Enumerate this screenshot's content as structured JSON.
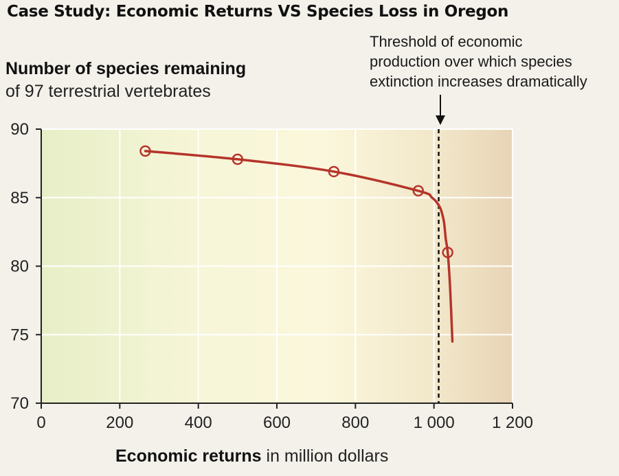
{
  "page_title": "Case Study: Economic Returns VS Species Loss in Oregon",
  "chart_data": {
    "type": "line",
    "ylabel_bold": "Number of species remaining",
    "ylabel_sub": "of 97 terrestrial vertebrates",
    "xlabel_bold": "Economic returns",
    "xlabel_rest": " in million dollars",
    "xlim": [
      0,
      1200
    ],
    "ylim": [
      70,
      90
    ],
    "x_ticks": [
      0,
      200,
      400,
      600,
      800,
      1000,
      1200
    ],
    "x_tick_labels": [
      "0",
      "200",
      "400",
      "600",
      "800",
      "1 000",
      "1 200"
    ],
    "y_ticks": [
      70,
      75,
      80,
      85,
      90
    ],
    "y_tick_labels": [
      "70",
      "75",
      "80",
      "85",
      "90"
    ],
    "grid": true,
    "series": [
      {
        "name": "Species remaining",
        "color": "#b5342b",
        "points": [
          {
            "x": 265,
            "y": 88.4
          },
          {
            "x": 500,
            "y": 87.8
          },
          {
            "x": 745,
            "y": 86.9
          },
          {
            "x": 960,
            "y": 85.5
          },
          {
            "x": 1035,
            "y": 81.0
          }
        ],
        "curve": [
          {
            "x": 265,
            "y": 88.4
          },
          {
            "x": 500,
            "y": 87.8
          },
          {
            "x": 745,
            "y": 86.9
          },
          {
            "x": 960,
            "y": 85.5
          },
          {
            "x": 995,
            "y": 85.0
          },
          {
            "x": 1015,
            "y": 84.3
          },
          {
            "x": 1025,
            "y": 83.3
          },
          {
            "x": 1030,
            "y": 82.0
          },
          {
            "x": 1035,
            "y": 81.0
          },
          {
            "x": 1041,
            "y": 78.5
          },
          {
            "x": 1047,
            "y": 74.5
          }
        ]
      }
    ],
    "threshold": {
      "x": 1012,
      "label_lines": [
        "Threshold of economic",
        "production over which species",
        "extinction increases dramatically"
      ]
    }
  }
}
